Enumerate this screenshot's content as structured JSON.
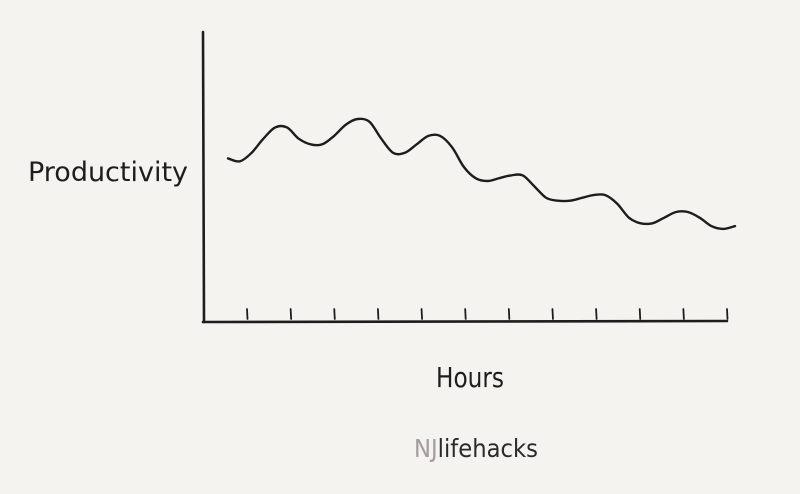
{
  "chart_data": {
    "type": "line",
    "ylabel": "Productivity",
    "xlabel": "Hours",
    "ticks": 12,
    "series": [
      {
        "values": [
          58,
          57,
          60,
          65,
          69,
          69,
          65,
          63,
          63,
          66,
          70,
          72,
          71,
          65,
          60,
          60,
          63,
          66,
          66,
          62,
          55,
          51,
          50,
          51,
          52,
          52,
          48,
          44,
          43,
          43,
          44,
          45,
          45,
          42,
          37,
          35,
          35,
          37,
          39,
          39,
          37,
          34,
          33,
          34
        ]
      }
    ],
    "ylim": [
      0,
      100
    ],
    "grid": false,
    "colors": {
      "ink": "#1d1d1d",
      "background": "#f4f3f0"
    }
  },
  "watermark": {
    "prefix": "NJ",
    "suffix": "lifehacks",
    "prefix_color": "#a39c9c",
    "suffix_color": "#2a2a2a"
  }
}
